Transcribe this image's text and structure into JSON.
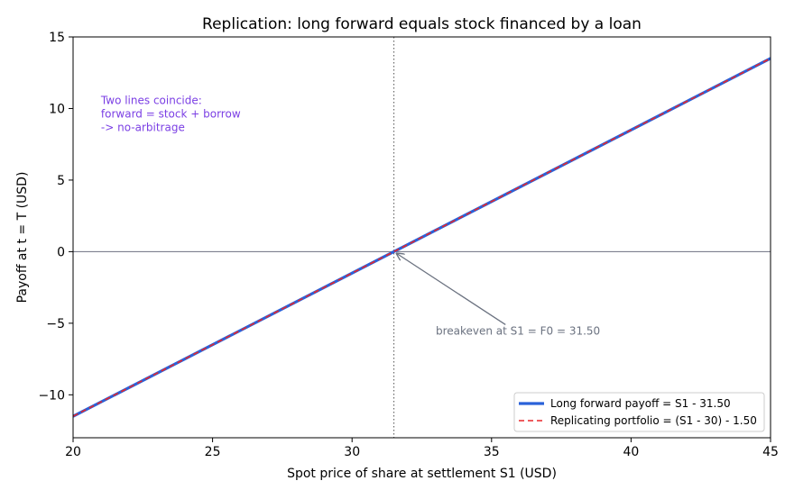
{
  "chart_data": {
    "type": "line",
    "title": "Replication: long forward equals stock financed by a loan",
    "xlabel": "Spot price of share at settlement S1 (USD)",
    "ylabel": "Payoff at t = T (USD)",
    "xlim": [
      20,
      45
    ],
    "ylim": [
      -13,
      15
    ],
    "xticks": [
      20,
      25,
      30,
      35,
      40,
      45
    ],
    "yticks": [
      -10,
      -5,
      0,
      5,
      10,
      15
    ],
    "ytick_labels": [
      "−10",
      "−5",
      "0",
      "5",
      "10",
      "15"
    ],
    "grid": false,
    "legend_position": "lower-right",
    "series": [
      {
        "name": "Long forward payoff = S1 - 31.50",
        "x": [
          20,
          45
        ],
        "y": [
          -11.5,
          13.5
        ],
        "color": "#2a62d9",
        "style": "solid"
      },
      {
        "name": "Replicating portfolio = (S1 - 30) - 1.50",
        "x": [
          20,
          45
        ],
        "y": [
          -11.5,
          13.5
        ],
        "color": "#e8262a",
        "style": "dashed"
      }
    ],
    "reference_lines": {
      "horizontal_y": 0,
      "vertical_x": 31.5,
      "horizontal_color": "#6b6f80",
      "vertical_color": "#555555"
    },
    "annotations": [
      {
        "text_lines": [
          "Two lines coincide:",
          "forward = stock + borrow",
          "-> no-arbitrage"
        ],
        "x": 21,
        "y": 10.3,
        "color": "#7b3fe4"
      },
      {
        "text": "breakeven at S1 = F0 = 31.50",
        "x": 33,
        "y": -5.8,
        "arrow_to": [
          31.5,
          0
        ],
        "arrow_from": [
          35.5,
          -5.1
        ],
        "color": "#6b7280"
      }
    ]
  }
}
